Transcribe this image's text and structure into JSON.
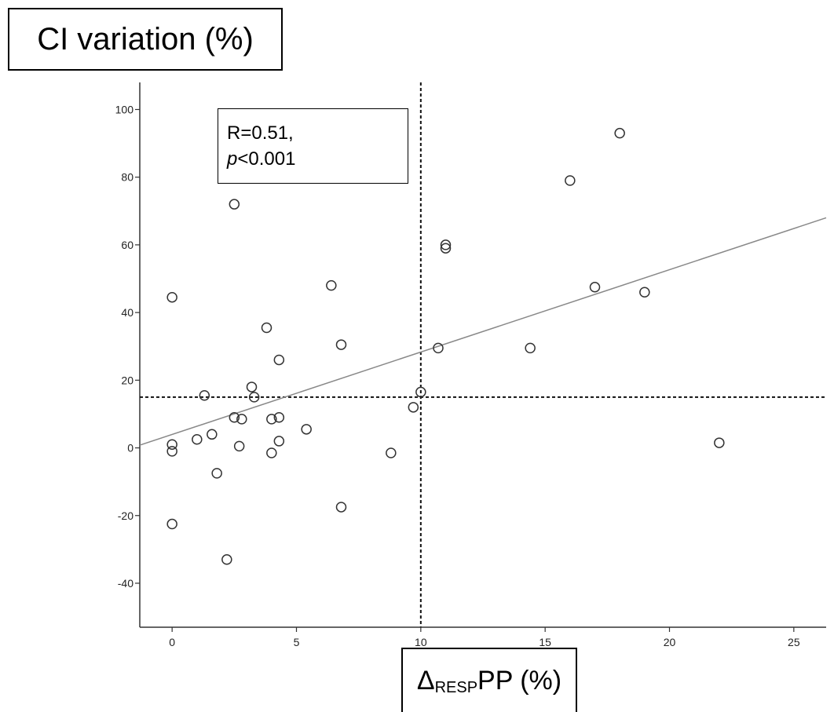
{
  "chart_data": {
    "type": "scatter",
    "ylabel": "CI variation (%)",
    "xlabel": {
      "prefix": "Δ",
      "subscript": "RESP",
      "suffix": "PP (%)"
    },
    "annotation": {
      "line1": "R=0.51,",
      "p_symbol": "p",
      "p_value": "<0.001"
    },
    "xlim": [
      -1.3,
      26.3
    ],
    "ylim": [
      -53,
      108
    ],
    "xticks": [
      0,
      5,
      10,
      15,
      20,
      25
    ],
    "yticks": [
      -40,
      -20,
      0,
      20,
      40,
      60,
      80,
      100
    ],
    "reference_lines": {
      "x": 10,
      "y": 15
    },
    "regression_line": {
      "x": [
        -1.3,
        26.3
      ],
      "y": [
        0.8,
        68
      ]
    },
    "grid": false,
    "points": [
      {
        "x": 0,
        "y": 44.5
      },
      {
        "x": 0,
        "y": 1
      },
      {
        "x": 0,
        "y": -1
      },
      {
        "x": 0,
        "y": -22.5
      },
      {
        "x": 1,
        "y": 2.5
      },
      {
        "x": 1.3,
        "y": 15.5
      },
      {
        "x": 1.6,
        "y": 4
      },
      {
        "x": 1.8,
        "y": -7.5
      },
      {
        "x": 2.2,
        "y": -33
      },
      {
        "x": 2.5,
        "y": 72
      },
      {
        "x": 2.5,
        "y": 9
      },
      {
        "x": 2.7,
        "y": 0.5
      },
      {
        "x": 2.8,
        "y": 8.5
      },
      {
        "x": 3.2,
        "y": 18
      },
      {
        "x": 3.3,
        "y": 15
      },
      {
        "x": 3.8,
        "y": 35.5
      },
      {
        "x": 4,
        "y": 8.5
      },
      {
        "x": 4,
        "y": -1.5
      },
      {
        "x": 4.3,
        "y": 26
      },
      {
        "x": 4.3,
        "y": 9
      },
      {
        "x": 4.3,
        "y": 2
      },
      {
        "x": 5.4,
        "y": 5.5
      },
      {
        "x": 6.4,
        "y": 48
      },
      {
        "x": 6.8,
        "y": 30.5
      },
      {
        "x": 6.8,
        "y": -17.5
      },
      {
        "x": 8.8,
        "y": -1.5
      },
      {
        "x": 9.7,
        "y": 12
      },
      {
        "x": 10,
        "y": 16.5
      },
      {
        "x": 10.7,
        "y": 29.5
      },
      {
        "x": 11,
        "y": 60
      },
      {
        "x": 11,
        "y": 59
      },
      {
        "x": 14.4,
        "y": 29.5
      },
      {
        "x": 16,
        "y": 79
      },
      {
        "x": 17,
        "y": 47.5
      },
      {
        "x": 18,
        "y": 93
      },
      {
        "x": 19,
        "y": 46
      },
      {
        "x": 22,
        "y": 1.5
      }
    ]
  }
}
